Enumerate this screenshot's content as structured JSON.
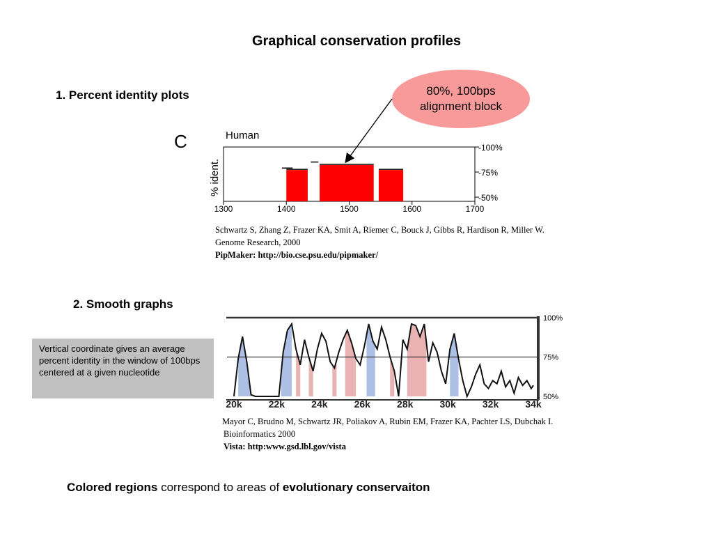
{
  "slide": {
    "title": "Graphical conservation profiles"
  },
  "section1": {
    "heading": "1. Percent identity plots",
    "callout_line1": "80%, 100bps",
    "callout_line2": "alignment block",
    "panel_letter": "C",
    "species": "Human",
    "ylabel": "% ident.",
    "ref_authors": "Schwartz S, Zhang Z, Frazer KA, Smit A, Riemer C, Bouck J, Gibbs R, Hardison R, Miller W.",
    "ref_journal": "Genome Research, 2000",
    "ref_tool": "PipMaker: http://bio.cse.psu.edu/pipmaker/"
  },
  "section2": {
    "heading": "2. Smooth graphs",
    "note": "Vertical coordinate gives an average percent identity in the window of 100bps centered at a given nucleotide",
    "ref_authors": "Mayor C, Brudno M, Schwartz JR, Poliakov A, Rubin EM, Frazer KA, Pachter LS, Dubchak I.",
    "ref_journal": "Bioinformatics 2000",
    "ref_tool": "Vista: http:www.gsd.lbl.gov/vista"
  },
  "footer": {
    "part1": "Colored regions",
    "part2": " correspond to areas of ",
    "part3": "evolutionary conservaiton"
  },
  "chart_data": [
    {
      "type": "bar",
      "title": "",
      "ylabel": "% ident.",
      "xlim": [
        1300,
        1700
      ],
      "ylim": [
        50,
        100
      ],
      "x_ticks": [
        "1300",
        "1400",
        "1500",
        "1600",
        "1700"
      ],
      "y_ticks": [
        "100%",
        "75%",
        "50%"
      ],
      "blocks": [
        {
          "start": 1400,
          "end": 1434,
          "identity": 77
        },
        {
          "start": 1453,
          "end": 1539,
          "identity": 82
        },
        {
          "start": 1547,
          "end": 1586,
          "identity": 77
        }
      ],
      "segments": [
        {
          "start": 1393,
          "end": 1410,
          "identity": 79
        },
        {
          "start": 1439,
          "end": 1451,
          "identity": 85
        }
      ],
      "colors": {
        "block": "#ff0000"
      }
    },
    {
      "type": "area",
      "xlim": [
        20000,
        34000
      ],
      "ylim": [
        50,
        100
      ],
      "x_ticks": [
        "20k",
        "22k",
        "24k",
        "26k",
        "28k",
        "30k",
        "32k",
        "34k"
      ],
      "y_ticks": [
        "100%",
        "75%",
        "50%"
      ],
      "threshold": 75,
      "x": [
        20000,
        20200,
        20400,
        20600,
        20800,
        21000,
        21300,
        21600,
        21900,
        22100,
        22300,
        22500,
        22700,
        22900,
        23100,
        23300,
        23500,
        23700,
        23900,
        24100,
        24300,
        24500,
        24700,
        24900,
        25100,
        25300,
        25500,
        25700,
        25900,
        26100,
        26300,
        26500,
        26700,
        26900,
        27100,
        27300,
        27500,
        27700,
        27900,
        28100,
        28300,
        28500,
        28700,
        28900,
        29100,
        29300,
        29500,
        29700,
        29900,
        30100,
        30300,
        30500,
        30700,
        30900,
        31100,
        31300,
        31500,
        31700,
        31900,
        32100,
        32300,
        32500,
        32700,
        32900,
        33100,
        33300,
        33500,
        33700,
        33900,
        34000
      ],
      "y": [
        50,
        74,
        88,
        72,
        51,
        50,
        50,
        50,
        50,
        50,
        78,
        92,
        96,
        80,
        70,
        86,
        75,
        66,
        80,
        90,
        85,
        72,
        68,
        78,
        86,
        92,
        84,
        74,
        70,
        82,
        96,
        85,
        80,
        94,
        86,
        75,
        66,
        50,
        86,
        80,
        96,
        95,
        88,
        96,
        72,
        84,
        78,
        66,
        58,
        80,
        90,
        74,
        60,
        50,
        56,
        64,
        70,
        58,
        55,
        60,
        58,
        66,
        56,
        60,
        52,
        62,
        57,
        60,
        55,
        57
      ],
      "conserved_regions": [
        {
          "start": 20200,
          "end": 20800,
          "class": "noncoding"
        },
        {
          "start": 22200,
          "end": 22700,
          "class": "noncoding"
        },
        {
          "start": 22900,
          "end": 23100,
          "class": "coding"
        },
        {
          "start": 23500,
          "end": 23700,
          "class": "coding"
        },
        {
          "start": 24600,
          "end": 24800,
          "class": "coding"
        },
        {
          "start": 25200,
          "end": 25700,
          "class": "coding"
        },
        {
          "start": 26200,
          "end": 26600,
          "class": "noncoding"
        },
        {
          "start": 27300,
          "end": 27500,
          "class": "coding"
        },
        {
          "start": 28100,
          "end": 29000,
          "class": "coding"
        },
        {
          "start": 30100,
          "end": 30500,
          "class": "noncoding"
        }
      ],
      "colors": {
        "coding": "#e9b3b3",
        "noncoding": "#aebfe6",
        "line": "#111111"
      }
    }
  ]
}
